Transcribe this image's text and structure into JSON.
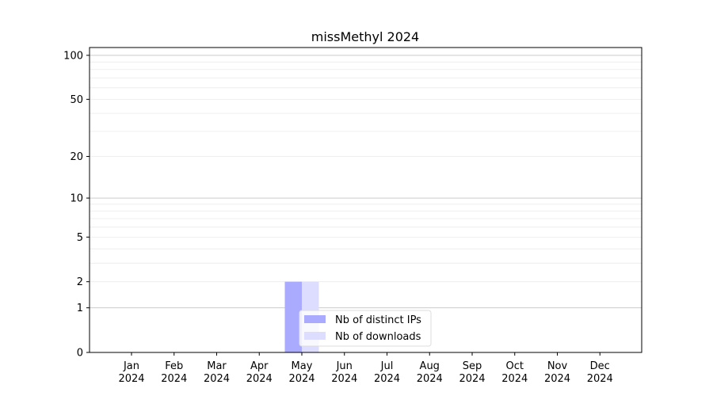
{
  "chart_data": {
    "type": "bar",
    "title": "missMethyl 2024",
    "xlabel": "",
    "ylabel": "",
    "yscale": "symlog",
    "ylim": [
      0,
      113
    ],
    "yticks": [
      0,
      1,
      2,
      5,
      10,
      20,
      50,
      100
    ],
    "categories": [
      "Jan\n2024",
      "Feb\n2024",
      "Mar\n2024",
      "Apr\n2024",
      "May\n2024",
      "Jun\n2024",
      "Jul\n2024",
      "Aug\n2024",
      "Sep\n2024",
      "Oct\n2024",
      "Nov\n2024",
      "Dec\n2024"
    ],
    "series": [
      {
        "name": "Nb of distinct IPs",
        "color": "#aaaaff",
        "values": [
          0,
          0,
          0,
          0,
          2,
          0,
          0,
          0,
          0,
          0,
          0,
          0
        ]
      },
      {
        "name": "Nb of downloads",
        "color": "#ddddff",
        "values": [
          0,
          0,
          0,
          0,
          2,
          0,
          0,
          0,
          0,
          0,
          0,
          0
        ]
      }
    ],
    "grid": true,
    "legend": "lower-center"
  }
}
